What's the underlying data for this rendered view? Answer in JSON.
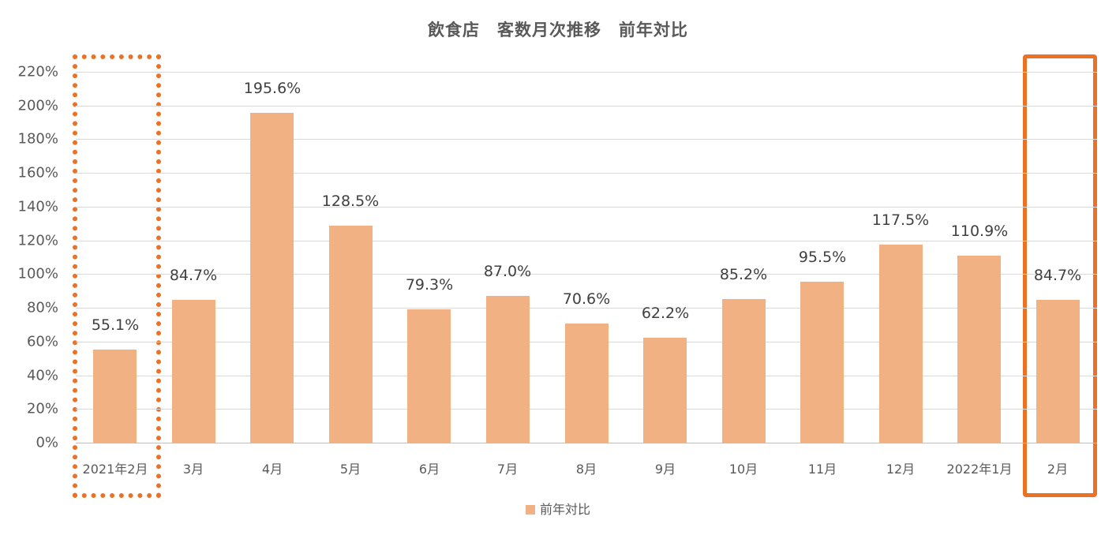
{
  "chart_data": {
    "type": "bar",
    "title": "飲食店　客数月次推移　前年対比",
    "xlabel": "",
    "ylabel": "",
    "ylim": [
      0,
      220
    ],
    "yticks": [
      "0%",
      "20%",
      "40%",
      "60%",
      "80%",
      "100%",
      "120%",
      "140%",
      "160%",
      "180%",
      "200%",
      "220%"
    ],
    "grid": true,
    "legend_position": "bottom",
    "categories": [
      "2021年2月",
      "3月",
      "4月",
      "5月",
      "6月",
      "7月",
      "8月",
      "9月",
      "10月",
      "11月",
      "12月",
      "2022年1月",
      "2月"
    ],
    "series": [
      {
        "name": "前年対比",
        "color": "#f2b183",
        "values": [
          55.1,
          84.7,
          195.6,
          128.5,
          79.3,
          87.0,
          70.6,
          62.2,
          85.2,
          95.5,
          117.5,
          110.9,
          84.7
        ],
        "labels": [
          "55.1%",
          "84.7%",
          "195.6%",
          "128.5%",
          "79.3%",
          "87.0%",
          "70.6%",
          "62.2%",
          "85.2%",
          "95.5%",
          "117.5%",
          "110.9%",
          "84.7%"
        ]
      }
    ],
    "annotations": [
      {
        "type": "dotted-box",
        "target": "2021年2月",
        "color": "#ea7125"
      },
      {
        "type": "solid-box",
        "target": "2月",
        "color": "#ea7125"
      }
    ]
  },
  "colors": {
    "bar": "#f2b183",
    "highlight": "#ea7125",
    "grid": "#d9d9d9"
  }
}
